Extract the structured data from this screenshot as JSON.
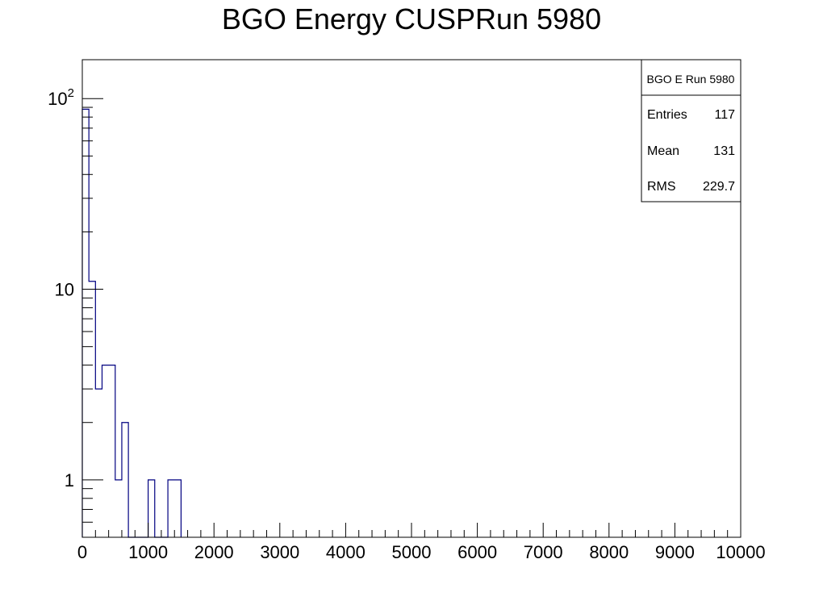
{
  "chart_data": {
    "type": "histogram",
    "title": "BGO Energy CUSPRun 5980",
    "xlabel": "",
    "ylabel": "",
    "x_range": [
      0,
      10000
    ],
    "y_range": [
      0.5,
      160
    ],
    "y_scale": "log",
    "grid": false,
    "bin_width": 100,
    "x_ticks": [
      "0",
      "1000",
      "2000",
      "3000",
      "4000",
      "5000",
      "6000",
      "7000",
      "8000",
      "9000",
      "10000"
    ],
    "y_ticks": [
      {
        "value": 1,
        "base": "1",
        "exp": ""
      },
      {
        "value": 10,
        "base": "10",
        "exp": ""
      },
      {
        "value": 100,
        "base": "10",
        "exp": "2"
      }
    ],
    "bins": [
      {
        "x": 0,
        "count": 88
      },
      {
        "x": 100,
        "count": 11
      },
      {
        "x": 200,
        "count": 3
      },
      {
        "x": 300,
        "count": 4
      },
      {
        "x": 400,
        "count": 4
      },
      {
        "x": 500,
        "count": 1
      },
      {
        "x": 600,
        "count": 2
      },
      {
        "x": 700,
        "count": 0
      },
      {
        "x": 800,
        "count": 0
      },
      {
        "x": 900,
        "count": 0
      },
      {
        "x": 1000,
        "count": 1
      },
      {
        "x": 1100,
        "count": 0
      },
      {
        "x": 1200,
        "count": 0
      },
      {
        "x": 1300,
        "count": 1
      },
      {
        "x": 1400,
        "count": 1
      }
    ],
    "line_color": "#000080",
    "stats_box": {
      "title": "BGO E Run 5980",
      "placement": "top-right",
      "rows": [
        {
          "label": "Entries",
          "value": "117"
        },
        {
          "label": "Mean",
          "value": "131"
        },
        {
          "label": "RMS",
          "value": "229.7"
        }
      ]
    }
  }
}
